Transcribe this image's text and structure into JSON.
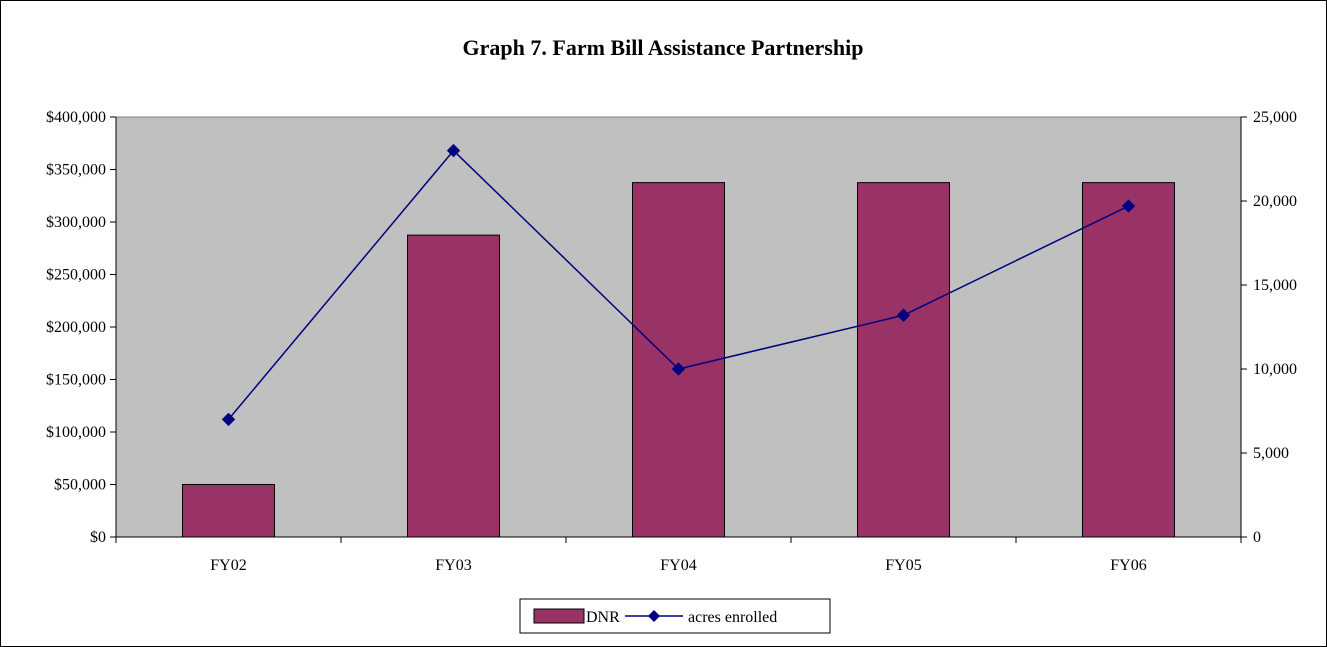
{
  "chart_data": {
    "type": "bar",
    "title": "Graph 7.  Farm Bill Assistance Partnership",
    "categories": [
      "FY02",
      "FY03",
      "FY04",
      "FY05",
      "FY06"
    ],
    "series": [
      {
        "name": "DNR",
        "type": "bar",
        "axis": "left",
        "values": [
          50000,
          287500,
          337500,
          337500,
          337500
        ]
      },
      {
        "name": "acres enrolled",
        "type": "line",
        "axis": "right",
        "marker": "diamond",
        "values": [
          7000,
          23000,
          10000,
          13200,
          19700
        ]
      }
    ],
    "y_left": {
      "min": 0,
      "max": 400000,
      "step": 50000,
      "tick_labels": [
        "$0",
        "$50,000",
        "$100,000",
        "$150,000",
        "$200,000",
        "$250,000",
        "$300,000",
        "$350,000",
        "$400,000"
      ]
    },
    "y_right": {
      "min": 0,
      "max": 25000,
      "step": 5000,
      "tick_labels": [
        "0",
        "5,000",
        "10,000",
        "15,000",
        "20,000",
        "25,000"
      ]
    },
    "grid": false,
    "legend_position": "bottom",
    "colors": {
      "plot_background": "#c0c0c0",
      "bar_fill": "#993366",
      "line": "#000080",
      "marker": "#000080"
    }
  }
}
